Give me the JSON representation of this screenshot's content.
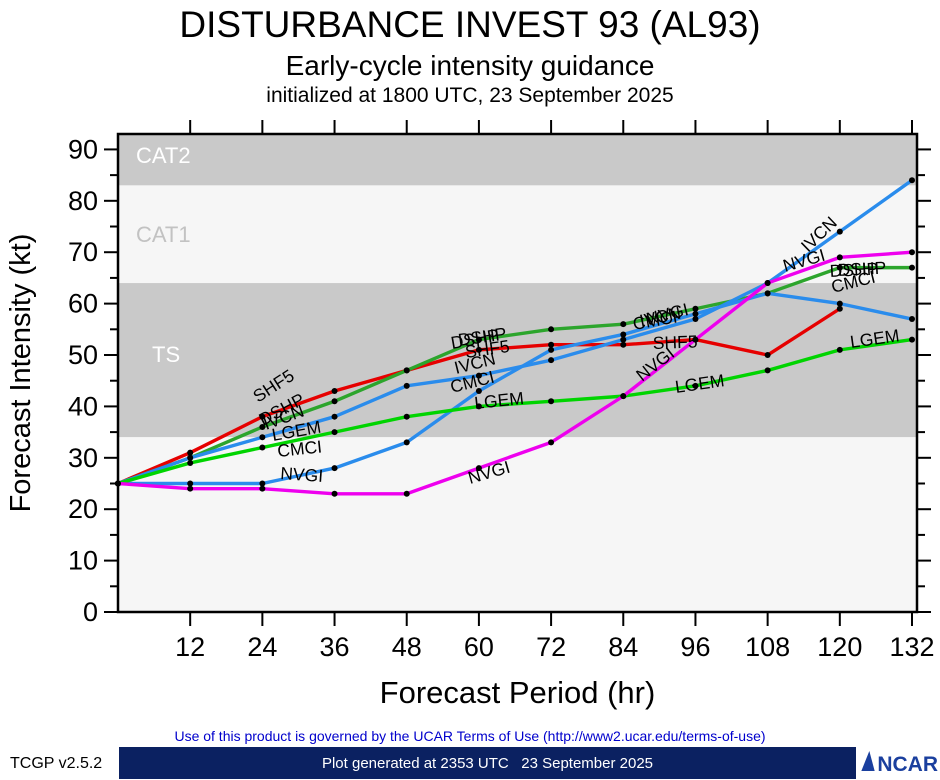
{
  "header": {
    "title": "DISTURBANCE INVEST 93 (AL93)",
    "subtitle": "Early-cycle intensity guidance",
    "init_line": "initialized at 1800 UTC, 23 September 2025"
  },
  "footer": {
    "terms": "Use of this product is governed by the UCAR Terms of Use (http://www2.ucar.edu/terms-of-use)",
    "version": "TCGP v2.5.2",
    "generated": "Plot generated at 2353 UTC   23 September 2025",
    "bar_color": "#0b2161",
    "logo_text": "NCAR",
    "logo_color": "#1a3f9e"
  },
  "chart_data": {
    "type": "line",
    "title": "DISTURBANCE INVEST 93 (AL93)",
    "xlabel": "Forecast Period (hr)",
    "ylabel": "Forecast Intensity (kt)",
    "xlim": [
      0,
      132
    ],
    "ylim": [
      0,
      93
    ],
    "xticks": [
      12,
      24,
      36,
      48,
      60,
      72,
      84,
      96,
      108,
      120,
      132
    ],
    "yticks": [
      0,
      10,
      20,
      30,
      40,
      50,
      60,
      70,
      80,
      90
    ],
    "grid": false,
    "legend_position": "inline-labels",
    "bands": [
      {
        "label": "CAT2",
        "from": 83,
        "to": 93,
        "color": "#c9c9c9",
        "label_color": "#ffffff"
      },
      {
        "label": "CAT1",
        "from": 64,
        "to": 83,
        "color": "#f6f6f6",
        "label_color": "#c2c2c2"
      },
      {
        "label": "TS",
        "from": 34,
        "to": 64,
        "color": "#c9c9c9",
        "label_color": "#ffffff"
      },
      {
        "label": "",
        "from": 0,
        "to": 34,
        "color": "#f6f6f6",
        "label_color": "#ffffff"
      }
    ],
    "band_label_pos": [
      {
        "label": "CAT2",
        "x": 136,
        "y": 163
      },
      {
        "label": "CAT1",
        "x": 136,
        "y": 242
      },
      {
        "label": "TS",
        "x": 152,
        "y": 362
      }
    ],
    "series": [
      {
        "name": "SHF5",
        "color": "#e60000",
        "hours": [
          0,
          12,
          24,
          36,
          48,
          60,
          72,
          84,
          96,
          108,
          120
        ],
        "values": [
          25,
          31,
          38,
          43,
          47,
          51,
          52,
          52,
          53,
          50,
          59
        ]
      },
      {
        "name": "DSHP",
        "color": "#2ca52c",
        "hours": [
          0,
          12,
          24,
          36,
          48,
          60,
          72,
          84,
          96,
          108,
          120,
          132
        ],
        "values": [
          25,
          30,
          36,
          41,
          47,
          53,
          55,
          56,
          59,
          62,
          67,
          67
        ]
      },
      {
        "name": "IVCN",
        "color": "#2a8cec",
        "hours": [
          0,
          12,
          24,
          36,
          48,
          60,
          72,
          84,
          96,
          108,
          120,
          132
        ],
        "values": [
          25,
          30,
          34,
          38,
          44,
          46,
          49,
          53,
          57,
          64,
          74,
          84
        ]
      },
      {
        "name": "CMCI",
        "color": "#2a8cec",
        "hours": [
          0,
          12,
          24,
          36,
          48,
          60,
          72,
          84,
          96,
          108,
          120,
          132
        ],
        "values": [
          25,
          25,
          25,
          28,
          33,
          43,
          51,
          54,
          58,
          62,
          60,
          57
        ]
      },
      {
        "name": "LGEM",
        "color": "#00d400",
        "hours": [
          0,
          12,
          24,
          36,
          48,
          60,
          72,
          84,
          96,
          108,
          120,
          132
        ],
        "values": [
          25,
          29,
          32,
          35,
          38,
          40,
          41,
          42,
          44,
          47,
          51,
          53
        ]
      },
      {
        "name": "NVGI",
        "color": "#ee00ee",
        "hours": [
          0,
          12,
          24,
          36,
          48,
          60,
          72,
          84,
          96,
          108,
          120,
          132
        ],
        "values": [
          25,
          24,
          24,
          23,
          23,
          28,
          33,
          42,
          53,
          64,
          69,
          70
        ]
      }
    ],
    "line_labels": [
      {
        "text": "SHF5",
        "x": 258,
        "y": 403,
        "rot": -33
      },
      {
        "text": "DSHP",
        "x": 263,
        "y": 426,
        "rot": -28
      },
      {
        "text": "IVCN",
        "x": 266,
        "y": 430,
        "rot": -20
      },
      {
        "text": "LGEM",
        "x": 273,
        "y": 441,
        "rot": -10
      },
      {
        "text": "CMCI",
        "x": 278,
        "y": 457,
        "rot": -6
      },
      {
        "text": "NVGI",
        "x": 280,
        "y": 479,
        "rot": 4
      },
      {
        "text": "DSHP",
        "x": 452,
        "y": 349,
        "rot": -10
      },
      {
        "text": "DSHP",
        "x": 459,
        "y": 346,
        "rot": -8
      },
      {
        "text": "SHF5",
        "x": 466,
        "y": 358,
        "rot": -8
      },
      {
        "text": "IVCN",
        "x": 456,
        "y": 374,
        "rot": -14
      },
      {
        "text": "CMCI",
        "x": 452,
        "y": 393,
        "rot": -14
      },
      {
        "text": "LGEM",
        "x": 475,
        "y": 409,
        "rot": -6
      },
      {
        "text": "NVGI",
        "x": 470,
        "y": 484,
        "rot": -16
      },
      {
        "text": "CMCI",
        "x": 634,
        "y": 330,
        "rot": -10
      },
      {
        "text": "IVCN",
        "x": 641,
        "y": 327,
        "rot": -12
      },
      {
        "text": "NVGI",
        "x": 648,
        "y": 325,
        "rot": -14
      },
      {
        "text": "SHF5",
        "x": 653,
        "y": 349,
        "rot": -2
      },
      {
        "text": "NVGI",
        "x": 642,
        "y": 382,
        "rot": -38
      },
      {
        "text": "LGEM",
        "x": 676,
        "y": 393,
        "rot": -8
      },
      {
        "text": "IVCN",
        "x": 808,
        "y": 253,
        "rot": -44
      },
      {
        "text": "NVGI",
        "x": 785,
        "y": 272,
        "rot": -16
      },
      {
        "text": "DSHP",
        "x": 830,
        "y": 277,
        "rot": -3
      },
      {
        "text": "DSHP",
        "x": 838,
        "y": 276,
        "rot": -3
      },
      {
        "text": "CMCI",
        "x": 833,
        "y": 293,
        "rot": -14
      },
      {
        "text": "LGEM",
        "x": 851,
        "y": 348,
        "rot": -8
      }
    ]
  }
}
